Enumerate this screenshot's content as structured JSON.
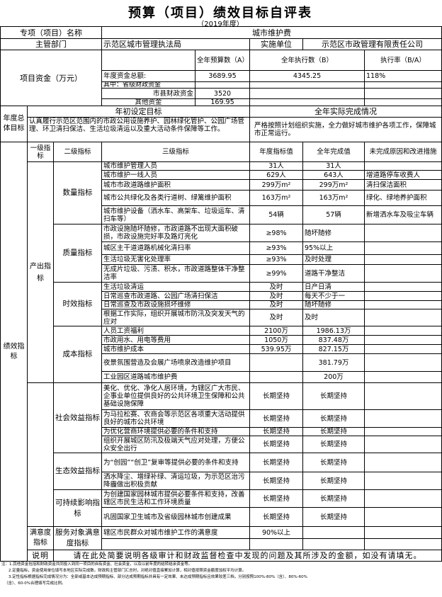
{
  "title": "预算（项目）绩效目标自评表",
  "subtitle": "（2019年度）",
  "project": {
    "name_label": "专项（项目）名称",
    "name": "城市维护费",
    "dept_label": "主管部门",
    "dept": "示范区城市管理执法局",
    "impl_label": "实施单位",
    "impl": "示范区市政管理有限责任公司"
  },
  "funds": {
    "label": "项目资金（万元）",
    "col_budget": "全年预算数（A）",
    "col_exec": "全年执行数（B）",
    "col_rate": "执行率（B/A）",
    "rows": [
      {
        "label": "年度资金总额:",
        "budget": "3689.95",
        "exec": "4345.25",
        "rate": "118%"
      },
      {
        "label": "其中：省级财政资金",
        "budget": "",
        "exec": "",
        "rate": ""
      },
      {
        "label": "市县财政资金",
        "budget": "3520",
        "exec": "",
        "rate": ""
      },
      {
        "label": "其他资金",
        "budget": "169.95",
        "exec": "",
        "rate": ""
      }
    ]
  },
  "goals": {
    "label": "年度总体目标",
    "initial_label": "年初设定目标",
    "actual_label": "全年实际完成情况",
    "initial": "认真履行示范区范围内的市政公用设施养护、园林绿化管护、公园广场管理、环卫清扫保洁、生活垃圾清运以及重大活动条件保障等工作。",
    "actual": "严格按照计划组织实施，全力做好城市维护各项工作，保障城市正常运行。"
  },
  "indicators": {
    "label": "绩效指标",
    "headers": {
      "level1": "一级指标",
      "level2": "二级指标",
      "level3": "三级指标",
      "target": "年度指标值",
      "actual": "全年完成值",
      "reason": "未完成原因和改进措施"
    },
    "level1": [
      {
        "name": "产出指标",
        "groups": [
          {
            "name": "数量指标",
            "rows": [
              {
                "item": "城市维护管理人员",
                "target": "31人",
                "actual": "31人",
                "reason": ""
              },
              {
                "item": "城市维护一线人员",
                "target": "629人",
                "actual": "643人",
                "reason": "增道路停车收费人"
              },
              {
                "item": "城市市政道路维护面积",
                "target": "299万m²",
                "actual": "299万m²",
                "reason": "清扫保洁面积"
              },
              {
                "item": "城市公共绿化及各类行道树、绿篱维护面积",
                "target": "163万m²",
                "actual": "163万m²",
                "reason": "绿化、绿地养护面积"
              },
              {
                "item": "城市维护设备（洒水车、高架车、垃圾运车、清扫车等）",
                "target": "54辆",
                "actual": "57辆",
                "reason": "新增洒水车及吸尘车辆"
              }
            ]
          },
          {
            "name": "质量指标",
            "rows": [
              {
                "item": "市政设施随坏随修，市政道路不出现大面积破损，市政设施完好率及路灯亮化",
                "target": "≥98%",
                "actual": "随坏随修",
                "reason": ""
              },
              {
                "item": "城区主干道道路机械化清扫率",
                "target": "≥93%",
                "actual": "95%以上",
                "reason": ""
              },
              {
                "item": "生活垃圾无害化处理率",
                "target": "≥93%",
                "actual": "及时处理",
                "reason": ""
              },
              {
                "item": "无成片垃圾、污渍、积水，市政道路整体干净整洁率",
                "target": "≥99%",
                "actual": "道路干净整洁",
                "reason": ""
              }
            ]
          },
          {
            "name": "时效指标",
            "rows": [
              {
                "item": "生活垃圾清运",
                "target": "及时",
                "actual": "日产日清",
                "reason": ""
              },
              {
                "item": "日常巡查市政道路、公园广场清扫保洁",
                "target": "及时",
                "actual": "每天不少于一",
                "reason": ""
              },
              {
                "item": "日常巡查及市政设施损坏维修",
                "target": "及时",
                "actual": "随坏随修",
                "reason": ""
              },
              {
                "item": "根据工作实际，组织开展城市防汛及突发天气的应对",
                "target": "及时",
                "actual": "及时",
                "reason": ""
              }
            ]
          },
          {
            "name": "成本指标",
            "rows": [
              {
                "item": "人员工资福利",
                "target": "2100万",
                "actual": "1986.13万",
                "reason": ""
              },
              {
                "item": "市政用水、用电等费用",
                "target": "1050万",
                "actual": "837.48万",
                "reason": ""
              },
              {
                "item": "城市维护成本",
                "target": "539.95万",
                "actual": "827.15万",
                "reason": ""
              },
              {
                "item": "夜景氛围营造及会展广场喷泉改造维护项目",
                "target": "",
                "actual": "381.79万",
                "reason": ""
              },
              {
                "item": "工业园区道路城市维护费",
                "target": "",
                "actual": "200万",
                "reason": ""
              }
            ]
          }
        ]
      },
      {
        "name": "",
        "groups": [
          {
            "name": "社会效益指标",
            "rows": [
              {
                "item": "美化、优化、净化人居环境，为辖区广大市民、企事业单位提供良好的公共环境卫生保障和公共基础设施保障",
                "target": "长期坚持",
                "actual": "长期坚持",
                "reason": ""
              },
              {
                "item": "为马拉松赛、农商会等示范区各项重大活动提供良好的城市公共环境",
                "target": "长期坚持",
                "actual": "长期坚持",
                "reason": ""
              },
              {
                "item": "为优化营商环境提供必要的条件和支持",
                "target": "长期坚持",
                "actual": "长期坚持",
                "reason": ""
              },
              {
                "item": "组织开展城区防汛及极端天气应对处理，方便公众安全出行",
                "target": "长期坚持",
                "actual": "长期坚持",
                "reason": ""
              }
            ]
          },
          {
            "name": "生态效益指标",
            "rows": [
              {
                "item": "为“创园”“创卫”复审等提供必要的条件和支持",
                "target": "长期坚持",
                "actual": "长期坚持",
                "reason": ""
              },
              {
                "item": "洒水降尘、增绿补绿、清运垃圾，为示范区治污降霾做出积极贡献",
                "target": "长期坚持",
                "actual": "长期坚持",
                "reason": ""
              }
            ]
          },
          {
            "name": "可持续影响指标",
            "rows": [
              {
                "item": "为创建国家园林城市提供必要条件和支持，改善辖区市民生活和工作环境质量",
                "target": "长期坚持",
                "actual": "长期坚持",
                "reason": ""
              },
              {
                "item": "巩固国家卫生城市及省级园林城市创建成果",
                "target": "长期坚持",
                "actual": "长期坚持",
                "reason": ""
              }
            ]
          }
        ]
      },
      {
        "name": "满意度指标",
        "groups": [
          {
            "name": "服务对象满意度指标",
            "rows": [
              {
                "item": "辖区市民群众对城市维护工作的满意度",
                "target": "90%以上",
                "actual": "",
                "reason": ""
              },
              {
                "item": "",
                "target": "",
                "actual": "",
                "reason": ""
              }
            ]
          }
        ]
      }
    ]
  },
  "explanation": {
    "label": "说明",
    "text": "请在此处简要说明各级审计和财政监督检查中发现的问题及其所涉及的金额，如没有请填无。"
  },
  "notes": [
    "注：1.其他资金包括和财政资金共同投入到同一项目的自有资金、社会资金，以及以前年度的结转结余资金等。",
    "2.定量指标，资金使用单位填写本地区实际完成数。财政和主管部门汇总时，对绝对值直接累加计算，相对值按照资金额度加权平均计算。",
    "3.定性指标根据指标完成情况分为：全部或基本达成预期指标、部分达成预期指标并具有一定效果、未达成预期指标且效果较差三档，分别按照100%-80%（含）、80%-60%",
    "（含）、60-0%合理填写完成比例。"
  ]
}
